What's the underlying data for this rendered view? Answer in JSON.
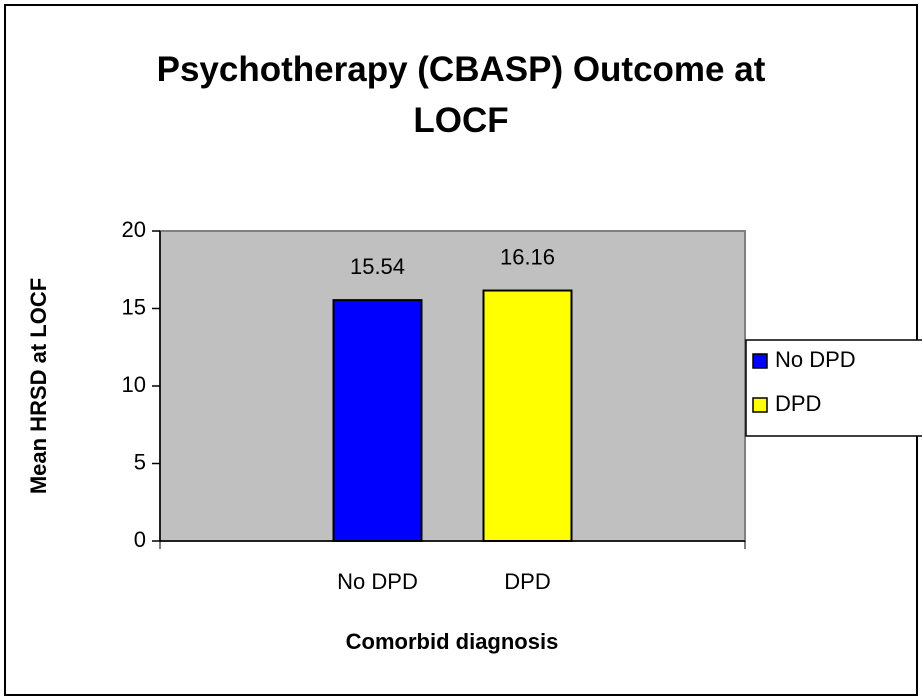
{
  "chart_data": {
    "type": "bar",
    "title": "Psychotherapy (CBASP) Outcome at LOCF",
    "x_label": "Comorbid diagnosis",
    "y_label": "Mean HRSD at LOCF",
    "categories": [
      "No DPD",
      "DPD"
    ],
    "values": [
      15.54,
      16.16
    ],
    "colors": [
      "#0000ff",
      "#ffff00"
    ],
    "ylim": [
      0,
      20
    ],
    "yticks": [
      0,
      5,
      10,
      15,
      20
    ],
    "legend": "right"
  }
}
